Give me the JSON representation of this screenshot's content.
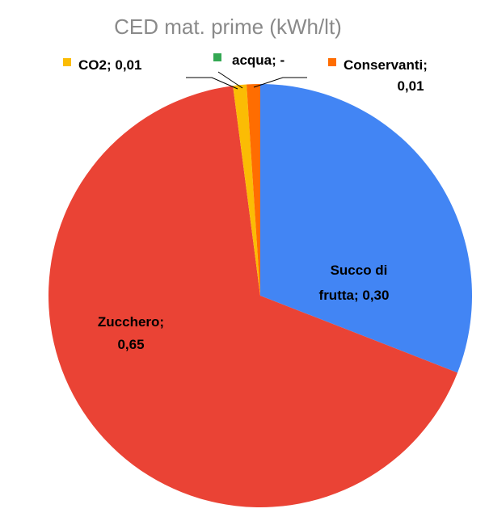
{
  "chart_data": {
    "type": "pie",
    "title": "CED mat. prime (kWh/lt)",
    "slices": [
      {
        "name": "Succo di frutta",
        "value": 0.3,
        "value_label": "0,30",
        "color": "#4285f4"
      },
      {
        "name": "Zucchero",
        "value": 0.65,
        "value_label": "0,65",
        "color": "#ea4335"
      },
      {
        "name": "CO2",
        "value": 0.01,
        "value_label": "0,01",
        "color": "#fbbc04"
      },
      {
        "name": "acqua",
        "value": 0,
        "value_label": "-",
        "color": "#34a853"
      },
      {
        "name": "Conservanti",
        "value": 0.01,
        "value_label": "0,01",
        "color": "#ff6d01"
      }
    ]
  }
}
